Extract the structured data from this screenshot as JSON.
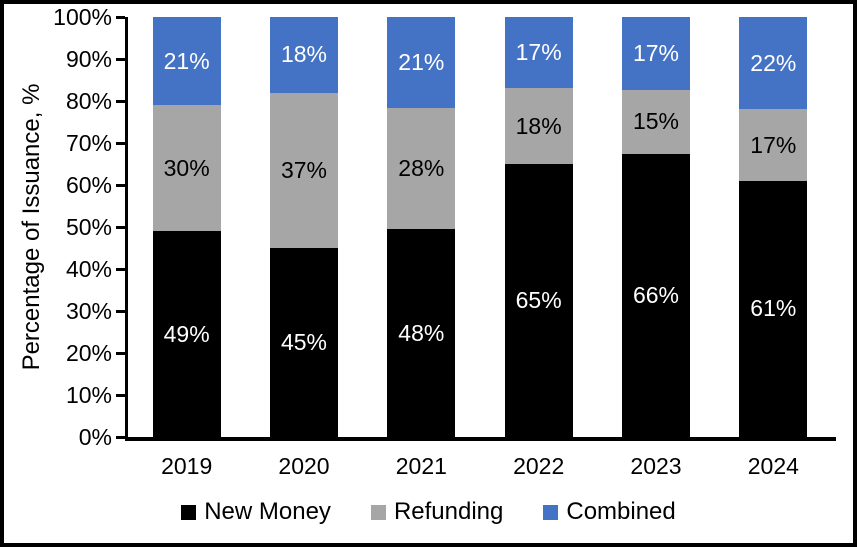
{
  "chart_data": {
    "type": "bar",
    "stacked": true,
    "title": "",
    "xlabel": "",
    "ylabel": "Percentage of Issuance, %",
    "categories": [
      "2019",
      "2020",
      "2021",
      "2022",
      "2023",
      "2024"
    ],
    "series": [
      {
        "name": "New Money",
        "color": "#000000",
        "label_color": "#ffffff",
        "values": [
          49,
          45,
          48,
          65,
          66,
          61
        ],
        "labels": [
          "49%",
          "45%",
          "48%",
          "65%",
          "66%",
          "61%"
        ]
      },
      {
        "name": "Refunding",
        "color": "#a6a6a6",
        "label_color": "#000000",
        "values": [
          30,
          37,
          28,
          18,
          15,
          17
        ],
        "labels": [
          "30%",
          "37%",
          "28%",
          "18%",
          "15%",
          "17%"
        ]
      },
      {
        "name": "Combined",
        "color": "#4472c4",
        "label_color": "#ffffff",
        "values": [
          21,
          18,
          21,
          17,
          17,
          22
        ],
        "labels": [
          "21%",
          "18%",
          "21%",
          "17%",
          "17%",
          "22%"
        ]
      }
    ],
    "y_axis": {
      "min": 0,
      "max": 100,
      "step": 10,
      "tick_labels": [
        "0%",
        "10%",
        "20%",
        "30%",
        "40%",
        "50%",
        "60%",
        "70%",
        "80%",
        "90%",
        "100%"
      ]
    },
    "legend": {
      "position": "bottom",
      "entries": [
        "New Money",
        "Refunding",
        "Combined"
      ]
    },
    "axis_color": "#000000",
    "background_color": "#ffffff"
  }
}
